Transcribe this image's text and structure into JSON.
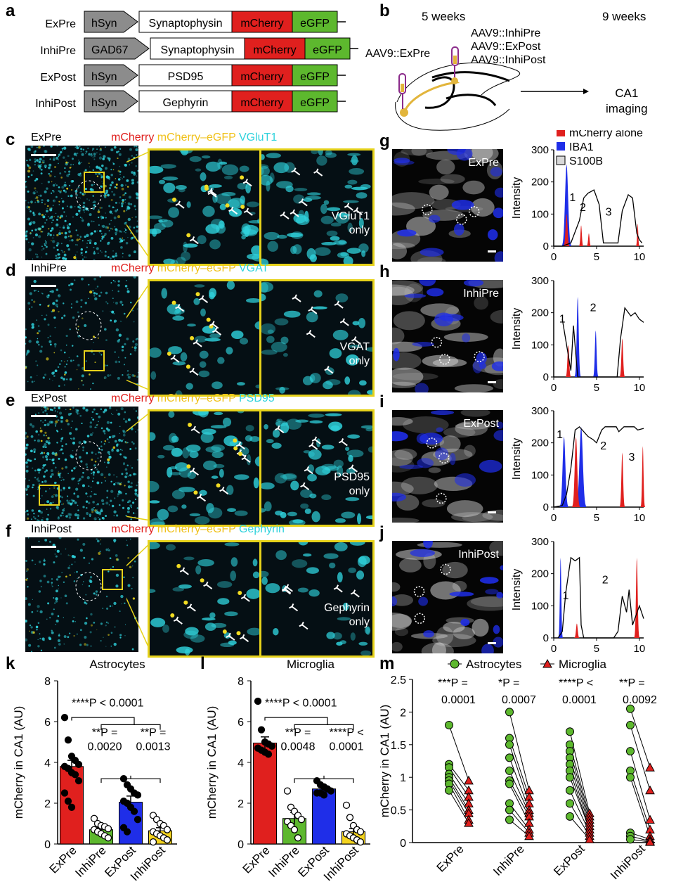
{
  "panels": {
    "a": "a",
    "b": "b",
    "c": "c",
    "d": "d",
    "e": "e",
    "f": "f",
    "g": "g",
    "h": "h",
    "i": "i",
    "j": "j",
    "k": "k",
    "l": "l",
    "m": "m"
  },
  "constructs": [
    {
      "name": "ExPre",
      "promoter": "hSyn",
      "gene": "Synaptophysin",
      "r1": "mCherry",
      "r2": "eGFP"
    },
    {
      "name": "InhiPre",
      "promoter": "GAD67",
      "gene": "Synaptophysin",
      "r1": "mCherry",
      "r2": "eGFP"
    },
    {
      "name": "ExPost",
      "promoter": "hSyn",
      "gene": "PSD95",
      "r1": "mCherry",
      "r2": "eGFP"
    },
    {
      "name": "InhiPost",
      "promoter": "hSyn",
      "gene": "Gephyrin",
      "r1": "mCherry",
      "r2": "eGFP"
    }
  ],
  "schematic_b": {
    "week1": "5 weeks",
    "week2": "9 weeks",
    "inj_left": "AAV9::ExPre",
    "inj_right": [
      "AAV9::InhiPre",
      "AAV9::ExPost",
      "AAV9::InhiPost"
    ],
    "outcome": [
      "CA1",
      "imaging"
    ]
  },
  "micro_rows": [
    {
      "title": "ExPre",
      "c1": "mCherry",
      "c2": "mCherry–eGFP",
      "c3": "VGluT1",
      "only": [
        "VGluT1",
        "only"
      ]
    },
    {
      "title": "InhiPre",
      "c1": "mCherry",
      "c2": "mCherry–eGFP",
      "c3": "VGAT",
      "only": [
        "VGAT",
        "only"
      ]
    },
    {
      "title": "ExPost",
      "c1": "mCherry",
      "c2": "mCherry–eGFP",
      "c3": "PSD95",
      "only": [
        "PSD95",
        "only"
      ]
    },
    {
      "title": "InhiPost",
      "c1": "mCherry",
      "c2": "mCherry–eGFP",
      "c3": "Gephyrin",
      "only": [
        "Gephyrin",
        "only"
      ]
    }
  ],
  "overlay_titles": {
    "g": "ExPre",
    "h": "InhiPre",
    "i": "ExPost",
    "j": "InhiPost"
  },
  "colors": {
    "mcherry": "#e0201e",
    "egfp": "#5db82e",
    "iba1": "#1f2ee8",
    "s100b": "#d9d9d9",
    "cyan": "#2fd2dc",
    "yellow": "#e6d21a",
    "expost": "#1f2ee8",
    "inhipost": "#f3d31f",
    "promoter": "#8c8c8c"
  },
  "chart_data": [
    {
      "panel": "g",
      "type": "area",
      "legend": [
        "mCherry alone",
        "IBA1",
        "S100B"
      ],
      "ylabel": "Intensity",
      "xunit": "μm",
      "ylim": [
        0,
        300
      ],
      "xlim": [
        0,
        10.5
      ],
      "yticks": [
        0,
        100,
        200,
        300
      ],
      "xticks": [
        0,
        5,
        10
      ],
      "peak_labels": [
        "1",
        "2",
        "3"
      ]
    },
    {
      "panel": "h",
      "type": "area",
      "ylabel": "Intensity",
      "xunit": "μm",
      "ylim": [
        0,
        300
      ],
      "xlim": [
        0,
        10.5
      ],
      "yticks": [
        0,
        100,
        200,
        300
      ],
      "xticks": [
        0,
        5,
        10
      ],
      "peak_labels": [
        "1",
        "2"
      ]
    },
    {
      "panel": "i",
      "type": "area",
      "ylabel": "Intensity",
      "xunit": "μm",
      "ylim": [
        0,
        300
      ],
      "xlim": [
        0,
        10.5
      ],
      "yticks": [
        0,
        100,
        200,
        300
      ],
      "xticks": [
        0,
        5,
        10
      ],
      "peak_labels": [
        "1",
        "2",
        "3"
      ]
    },
    {
      "panel": "j",
      "type": "area",
      "ylabel": "Intensity",
      "xunit": "μm",
      "ylim": [
        0,
        300
      ],
      "xlim": [
        0,
        10.5
      ],
      "yticks": [
        0,
        100,
        200,
        300
      ],
      "xticks": [
        0,
        5,
        10
      ],
      "peak_labels": [
        "1",
        "2"
      ]
    },
    {
      "panel": "k",
      "type": "bar",
      "title": "Astrocytes",
      "ylabel": "mCherry in CA1 (AU)",
      "categories": [
        "ExPre",
        "InhiPre",
        "ExPost",
        "InhiPost"
      ],
      "values": [
        3.8,
        0.7,
        2.05,
        0.65
      ],
      "sem": [
        0.3,
        0.1,
        0.3,
        0.15
      ],
      "ylim": [
        0,
        8
      ],
      "yticks": [
        0,
        2,
        4,
        6,
        8
      ],
      "points": [
        [
          6.2,
          5.1,
          4.3,
          4.1,
          3.9,
          3.8,
          3.7,
          3.5,
          3.4,
          3.1,
          2.5,
          2.1,
          1.8
        ],
        [
          1.25,
          1.0,
          0.9,
          0.85,
          0.75,
          0.7,
          0.6,
          0.5,
          0.4,
          0.3
        ],
        [
          3.2,
          2.9,
          2.7,
          2.5,
          2.4,
          2.1,
          2.0,
          1.8,
          1.6,
          1.2,
          0.8,
          0.6
        ],
        [
          1.4,
          1.2,
          1.0,
          0.9,
          0.7,
          0.6,
          0.5,
          0.4,
          0.3,
          0.2,
          0.1
        ]
      ],
      "hollow": [
        false,
        true,
        false,
        true
      ],
      "stats": [
        "****P < 0.0001",
        "**P =",
        "0.0020",
        "**P =",
        "0.0013"
      ]
    },
    {
      "panel": "l",
      "type": "bar",
      "title": "Microglia",
      "ylabel": "mCherry in CA1 (AU)",
      "categories": [
        "ExPre",
        "InhiPre",
        "ExPost",
        "InhiPost"
      ],
      "values": [
        4.95,
        1.25,
        2.7,
        0.6
      ],
      "sem": [
        0.3,
        0.3,
        0.15,
        0.15
      ],
      "ylim": [
        0,
        8
      ],
      "yticks": [
        0,
        2,
        4,
        6,
        8
      ],
      "points": [
        [
          7.0,
          5.6,
          5.0,
          4.9,
          4.8,
          4.7,
          4.6,
          4.5,
          4.4
        ],
        [
          2.6,
          1.8,
          1.6,
          1.4,
          1.2,
          1.1,
          0.9,
          0.7,
          0.3
        ],
        [
          3.1,
          2.9,
          2.8,
          2.7,
          2.6,
          2.5,
          2.5,
          2.4
        ],
        [
          1.9,
          1.3,
          0.9,
          0.7,
          0.6,
          0.5,
          0.4,
          0.3,
          0.2,
          0.1
        ]
      ],
      "hollow": [
        false,
        true,
        false,
        true
      ],
      "stats": [
        "****P < 0.0001",
        "**P =",
        "0.0048",
        "****P <",
        "0.0001"
      ]
    },
    {
      "panel": "m",
      "type": "scatter",
      "legend": [
        "Astrocytes",
        "Microglia"
      ],
      "ylabel": "mCherry in CA1 (AU)",
      "categories": [
        "ExPre",
        "InhiPre",
        "ExPost",
        "InhiPost"
      ],
      "ylim": [
        0,
        2.5
      ],
      "yticks": [
        0,
        0.5,
        1.0,
        1.5,
        2.0,
        2.5
      ],
      "astro": [
        [
          1.8,
          1.2,
          1.15,
          1.05,
          1.0,
          0.95,
          0.9,
          0.8
        ],
        [
          2.0,
          1.6,
          1.5,
          1.3,
          1.1,
          0.95,
          0.9,
          0.6,
          0.5,
          0.35
        ],
        [
          1.7,
          1.5,
          1.4,
          1.3,
          1.2,
          1.1,
          1.0,
          0.8,
          0.6,
          0.4
        ],
        [
          2.05,
          1.8,
          1.4,
          1.1,
          1.0,
          0.15,
          0.1,
          0.05
        ]
      ],
      "micro": [
        [
          0.95,
          0.8,
          0.7,
          0.6,
          0.5,
          0.45,
          0.35,
          0.3
        ],
        [
          0.8,
          0.7,
          0.6,
          0.5,
          0.45,
          0.4,
          0.3,
          0.2,
          0.15,
          0.1
        ],
        [
          0.45,
          0.4,
          0.35,
          0.3,
          0.25,
          0.2,
          0.2,
          0.15,
          0.1,
          0.05
        ],
        [
          1.15,
          0.8,
          0.35,
          0.2,
          0.1,
          0.05,
          0.02,
          0.01
        ]
      ],
      "stats": [
        [
          "***P =",
          "0.0001"
        ],
        [
          "*P =",
          "0.0007"
        ],
        [
          "****P <",
          "0.0001"
        ],
        [
          "**P =",
          "0.0092"
        ]
      ]
    }
  ]
}
